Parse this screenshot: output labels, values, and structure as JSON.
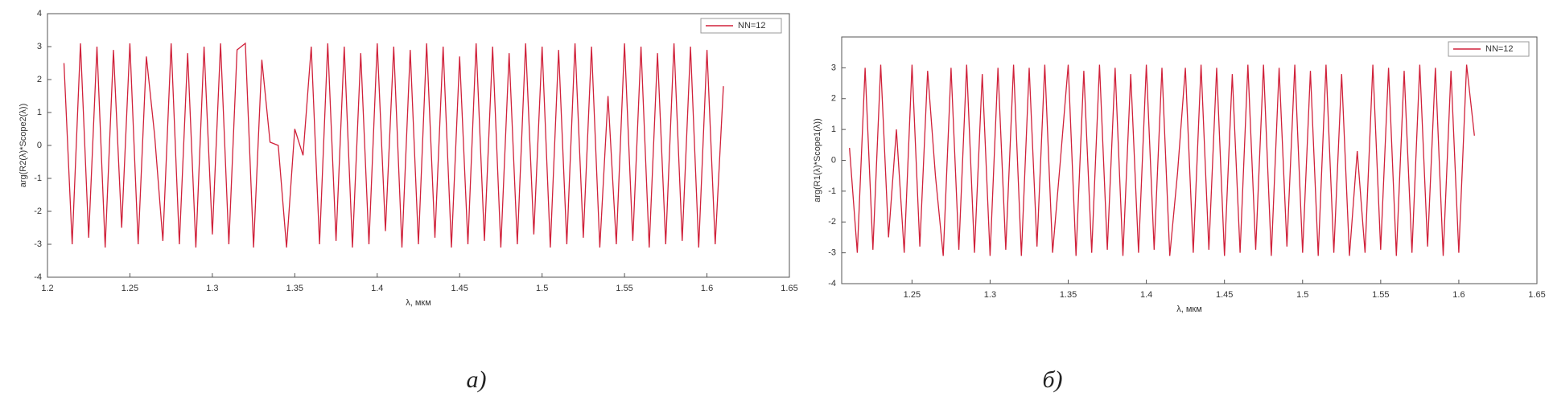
{
  "chart_data": [
    {
      "type": "line",
      "ylabel": "arg(R2(λ)*Scope2(λ))",
      "xlabel": "λ, мкм",
      "xlim": [
        1.2,
        1.65
      ],
      "xticks": [
        1.2,
        1.25,
        1.3,
        1.35,
        1.4,
        1.45,
        1.5,
        1.55,
        1.6,
        1.65
      ],
      "ylim": [
        -4,
        4
      ],
      "yticks": [
        -4,
        -3,
        -2,
        -1,
        0,
        1,
        2,
        3,
        4
      ],
      "legend": "upper right",
      "x": [
        1.21,
        1.215,
        1.22,
        1.225,
        1.23,
        1.235,
        1.24,
        1.245,
        1.25,
        1.255,
        1.26,
        1.265,
        1.27,
        1.275,
        1.28,
        1.285,
        1.29,
        1.295,
        1.3,
        1.305,
        1.31,
        1.315,
        1.32,
        1.325,
        1.33,
        1.335,
        1.34,
        1.345,
        1.35,
        1.355,
        1.36,
        1.365,
        1.37,
        1.375,
        1.38,
        1.385,
        1.39,
        1.395,
        1.4,
        1.405,
        1.41,
        1.415,
        1.42,
        1.425,
        1.43,
        1.435,
        1.44,
        1.445,
        1.45,
        1.455,
        1.46,
        1.465,
        1.47,
        1.475,
        1.48,
        1.485,
        1.49,
        1.495,
        1.5,
        1.505,
        1.51,
        1.515,
        1.52,
        1.525,
        1.53,
        1.535,
        1.54,
        1.545,
        1.55,
        1.555,
        1.56,
        1.565,
        1.57,
        1.575,
        1.58,
        1.585,
        1.59,
        1.595,
        1.6,
        1.605,
        1.61
      ],
      "series": [
        {
          "name": "NN=12",
          "color": "#d0213a",
          "values": [
            2.5,
            -3.0,
            3.1,
            -2.8,
            3.0,
            -3.1,
            2.9,
            -2.5,
            3.1,
            -3.0,
            2.7,
            0.3,
            -2.9,
            3.1,
            -3.0,
            2.8,
            -3.1,
            3.0,
            -2.7,
            3.1,
            -3.0,
            2.9,
            3.1,
            -3.1,
            2.6,
            0.1,
            0.0,
            -3.1,
            0.5,
            -0.3,
            3.0,
            -3.0,
            3.1,
            -2.9,
            3.0,
            -3.1,
            2.8,
            -3.0,
            3.1,
            -2.6,
            3.0,
            -3.1,
            2.9,
            -3.0,
            3.1,
            -2.8,
            3.0,
            -3.1,
            2.7,
            -3.0,
            3.1,
            -2.9,
            3.0,
            -3.1,
            2.8,
            -3.0,
            3.1,
            -2.7,
            3.0,
            -3.1,
            2.9,
            -3.0,
            3.1,
            -2.8,
            3.0,
            -3.1,
            1.5,
            -3.0,
            3.1,
            -2.9,
            3.0,
            -3.1,
            2.8,
            -3.0,
            3.1,
            -2.9,
            3.0,
            -3.1,
            2.9,
            -3.0,
            1.8
          ]
        }
      ]
    },
    {
      "type": "line",
      "ylabel": "arg(R1(λ)*Scope1(λ))",
      "xlabel": "λ, мкм",
      "xlim": [
        1.205,
        1.65
      ],
      "xticks": [
        1.25,
        1.3,
        1.35,
        1.4,
        1.45,
        1.5,
        1.55,
        1.6,
        1.65
      ],
      "ylim": [
        -4,
        4
      ],
      "yticks": [
        -4,
        -3,
        -2,
        -1,
        0,
        1,
        2,
        3
      ],
      "legend": "upper right",
      "x": [
        1.21,
        1.215,
        1.22,
        1.225,
        1.23,
        1.235,
        1.24,
        1.245,
        1.25,
        1.255,
        1.26,
        1.265,
        1.27,
        1.275,
        1.28,
        1.285,
        1.29,
        1.295,
        1.3,
        1.305,
        1.31,
        1.315,
        1.32,
        1.325,
        1.33,
        1.335,
        1.34,
        1.345,
        1.35,
        1.355,
        1.36,
        1.365,
        1.37,
        1.375,
        1.38,
        1.385,
        1.39,
        1.395,
        1.4,
        1.405,
        1.41,
        1.415,
        1.42,
        1.425,
        1.43,
        1.435,
        1.44,
        1.445,
        1.45,
        1.455,
        1.46,
        1.465,
        1.47,
        1.475,
        1.48,
        1.485,
        1.49,
        1.495,
        1.5,
        1.505,
        1.51,
        1.515,
        1.52,
        1.525,
        1.53,
        1.535,
        1.54,
        1.545,
        1.55,
        1.555,
        1.56,
        1.565,
        1.57,
        1.575,
        1.58,
        1.585,
        1.59,
        1.595,
        1.6,
        1.605,
        1.61
      ],
      "series": [
        {
          "name": "NN=12",
          "color": "#d0213a",
          "values": [
            0.4,
            -3.0,
            3.0,
            -2.9,
            3.1,
            -2.5,
            1.0,
            -3.0,
            3.1,
            -2.8,
            2.9,
            -0.5,
            -3.1,
            3.0,
            -2.9,
            3.1,
            -3.0,
            2.8,
            -3.1,
            3.0,
            -2.9,
            3.1,
            -3.1,
            3.0,
            -2.8,
            3.1,
            -3.0,
            0.0,
            3.1,
            -3.1,
            2.9,
            -3.0,
            3.1,
            -2.9,
            3.0,
            -3.1,
            2.8,
            -3.0,
            3.1,
            -2.9,
            3.0,
            -3.1,
            -0.4,
            3.0,
            -3.0,
            3.1,
            -2.9,
            3.0,
            -3.1,
            2.8,
            -3.0,
            3.1,
            -2.9,
            3.1,
            -3.1,
            3.0,
            -2.8,
            3.1,
            -3.0,
            2.9,
            -3.1,
            3.1,
            -3.0,
            2.8,
            -3.1,
            0.3,
            -3.0,
            3.1,
            -2.9,
            3.0,
            -3.1,
            2.9,
            -3.0,
            3.1,
            -2.8,
            3.0,
            -3.1,
            2.9,
            -3.0,
            3.1,
            0.8
          ]
        }
      ]
    }
  ],
  "captions": [
    "а)",
    "б)"
  ]
}
